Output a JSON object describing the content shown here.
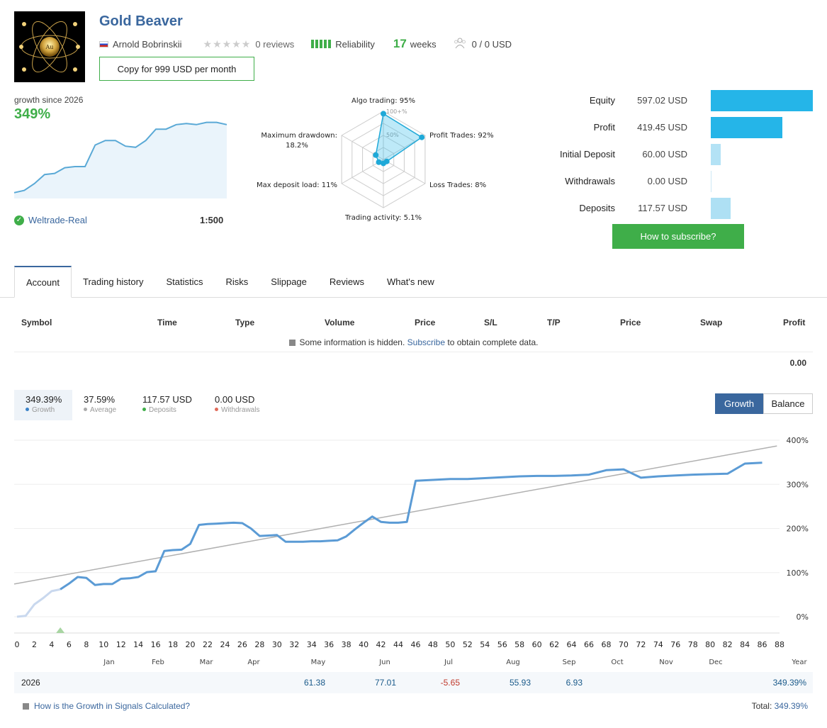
{
  "header": {
    "title": "Gold Beaver",
    "author": "Arnold Bobrinskii",
    "reviews": "0 reviews",
    "reliability": "Reliability",
    "weeks_num": "17",
    "weeks_label": "weeks",
    "subscribers": "0 / 0 USD",
    "copy_button": "Copy for 999 USD per month",
    "logo_text": "Au"
  },
  "growth": {
    "since": "growth since 2026",
    "pct": "349%",
    "broker": "Weltrade-Real",
    "leverage": "1:500",
    "mini_values": [
      2,
      4,
      10,
      18,
      19,
      24,
      25,
      25,
      44,
      48,
      48,
      43,
      42,
      48,
      58,
      58,
      62,
      63,
      62,
      64,
      64,
      62
    ]
  },
  "radar": {
    "labels": {
      "algo": "Algo trading: 95%",
      "profit": "Profit Trades: 92%",
      "loss": "Loss Trades: 8%",
      "activity": "Trading activity: 5.1%",
      "deposit_load": "Max deposit load: 11%",
      "drawdown_1": "Maximum drawdown:",
      "drawdown_2": "18.2%"
    },
    "ticks": [
      "100+%",
      "50%"
    ],
    "values": [
      95,
      92,
      8,
      5.1,
      11,
      18.2
    ]
  },
  "stats": [
    {
      "label": "Equity",
      "value": "597.02 USD",
      "amount": 597.02,
      "color": "#25b5e8"
    },
    {
      "label": "Profit",
      "value": "419.45 USD",
      "amount": 419.45,
      "color": "#25b5e8"
    },
    {
      "label": "Initial Deposit",
      "value": "60.00 USD",
      "amount": 60.0,
      "color": "#b3e2f5"
    },
    {
      "label": "Withdrawals",
      "value": "0.00 USD",
      "amount": 0.0,
      "color": "#b3e2f5"
    },
    {
      "label": "Deposits",
      "value": "117.57 USD",
      "amount": 117.57,
      "color": "#aee0f4"
    }
  ],
  "how_button": "How to subscribe?",
  "tabs": [
    "Account",
    "Trading history",
    "Statistics",
    "Risks",
    "Slippage",
    "Reviews",
    "What's new"
  ],
  "table": {
    "headers": [
      "Symbol",
      "Time",
      "Type",
      "Volume",
      "Price",
      "S/L",
      "T/P",
      "Price",
      "Swap",
      "Profit"
    ],
    "note_before": "Some information is hidden.",
    "note_link": "Subscribe",
    "note_after": "to obtain complete data.",
    "total": "0.00"
  },
  "legend": [
    {
      "value": "349.39%",
      "label": "Growth",
      "color": "#3a82c8"
    },
    {
      "value": "37.59%",
      "label": "Average",
      "color": "#aaaaaa"
    },
    {
      "value": "117.57 USD",
      "label": "Deposits",
      "color": "#3fae49"
    },
    {
      "value": "0.00 USD",
      "label": "Withdrawals",
      "color": "#e06b5a"
    }
  ],
  "toggle": {
    "growth": "Growth",
    "balance": "Balance"
  },
  "chart_data": {
    "type": "line",
    "y_ticks": [
      "400%",
      "300%",
      "200%",
      "100%",
      "0%"
    ],
    "ylim": [
      0,
      400
    ],
    "x_ticks": [
      "0",
      "2",
      "4",
      "6",
      "8",
      "10",
      "12",
      "14",
      "16",
      "18",
      "20",
      "22",
      "24",
      "26",
      "28",
      "30",
      "32",
      "34",
      "36",
      "38",
      "40",
      "42",
      "44",
      "46",
      "48",
      "50",
      "52",
      "54",
      "56",
      "58",
      "60",
      "62",
      "64",
      "66",
      "68",
      "70",
      "72",
      "74",
      "76",
      "78",
      "80",
      "82",
      "84",
      "86",
      "88"
    ],
    "months": [
      "Jan",
      "Feb",
      "Mar",
      "Apr",
      "May",
      "Jun",
      "Jul",
      "Aug",
      "Sep",
      "Oct",
      "Nov",
      "Dec",
      "Year"
    ],
    "series": [
      {
        "name": "Growth",
        "color": "#5b9bd5",
        "points": [
          [
            0,
            0
          ],
          [
            1,
            2
          ],
          [
            2,
            28
          ],
          [
            3,
            42
          ],
          [
            4,
            58
          ],
          [
            5,
            62
          ],
          [
            6,
            75
          ],
          [
            7,
            90
          ],
          [
            8,
            88
          ],
          [
            9,
            72
          ],
          [
            10,
            74
          ],
          [
            11,
            74
          ],
          [
            12,
            86
          ],
          [
            13,
            87
          ],
          [
            14,
            90
          ],
          [
            15,
            101
          ],
          [
            16,
            103
          ],
          [
            17,
            149
          ],
          [
            18,
            151
          ],
          [
            19,
            152
          ],
          [
            20,
            165
          ],
          [
            21,
            208
          ],
          [
            22,
            210
          ],
          [
            23,
            211
          ],
          [
            24,
            212
          ],
          [
            25,
            213
          ],
          [
            26,
            212
          ],
          [
            27,
            200
          ],
          [
            28,
            183
          ],
          [
            29,
            184
          ],
          [
            30,
            185
          ],
          [
            31,
            170
          ],
          [
            32,
            170
          ],
          [
            33,
            170
          ],
          [
            34,
            171
          ],
          [
            35,
            171
          ],
          [
            36,
            172
          ],
          [
            37,
            173
          ],
          [
            38,
            182
          ],
          [
            39,
            198
          ],
          [
            40,
            213
          ],
          [
            41,
            227
          ],
          [
            42,
            215
          ],
          [
            43,
            213
          ],
          [
            44,
            213
          ],
          [
            45,
            215
          ],
          [
            46,
            308
          ],
          [
            47,
            309
          ],
          [
            48,
            310
          ],
          [
            49,
            311
          ],
          [
            50,
            312
          ],
          [
            52,
            312
          ],
          [
            54,
            314
          ],
          [
            56,
            316
          ],
          [
            58,
            318
          ],
          [
            60,
            319
          ],
          [
            62,
            319
          ],
          [
            64,
            320
          ],
          [
            66,
            322
          ],
          [
            68,
            332
          ],
          [
            70,
            334
          ],
          [
            72,
            315
          ],
          [
            74,
            318
          ],
          [
            76,
            320
          ],
          [
            78,
            322
          ],
          [
            80,
            323
          ],
          [
            82,
            324
          ],
          [
            84,
            347
          ],
          [
            86,
            349
          ]
        ]
      },
      {
        "name": "Average",
        "color": "#aaaaaa",
        "points": [
          [
            -2,
            68
          ],
          [
            88,
            388
          ]
        ]
      }
    ],
    "deposit_marker_x": 5
  },
  "year_row": {
    "year": "2026",
    "cells": [
      {
        "value": "61.38",
        "color": "#1a5a8a",
        "x": 437
      },
      {
        "value": "77.01",
        "color": "#1a5a8a",
        "x": 537
      },
      {
        "value": "-5.65",
        "color": "#c0392b",
        "x": 627
      },
      {
        "value": "55.93",
        "color": "#1a5a8a",
        "x": 727
      },
      {
        "value": "6.93",
        "color": "#1a5a8a",
        "x": 800
      }
    ],
    "total": "349.39%"
  },
  "footer": {
    "link": "How is the Growth in Signals Calculated?",
    "total_label": "Total:",
    "total_value": "349.39%"
  }
}
